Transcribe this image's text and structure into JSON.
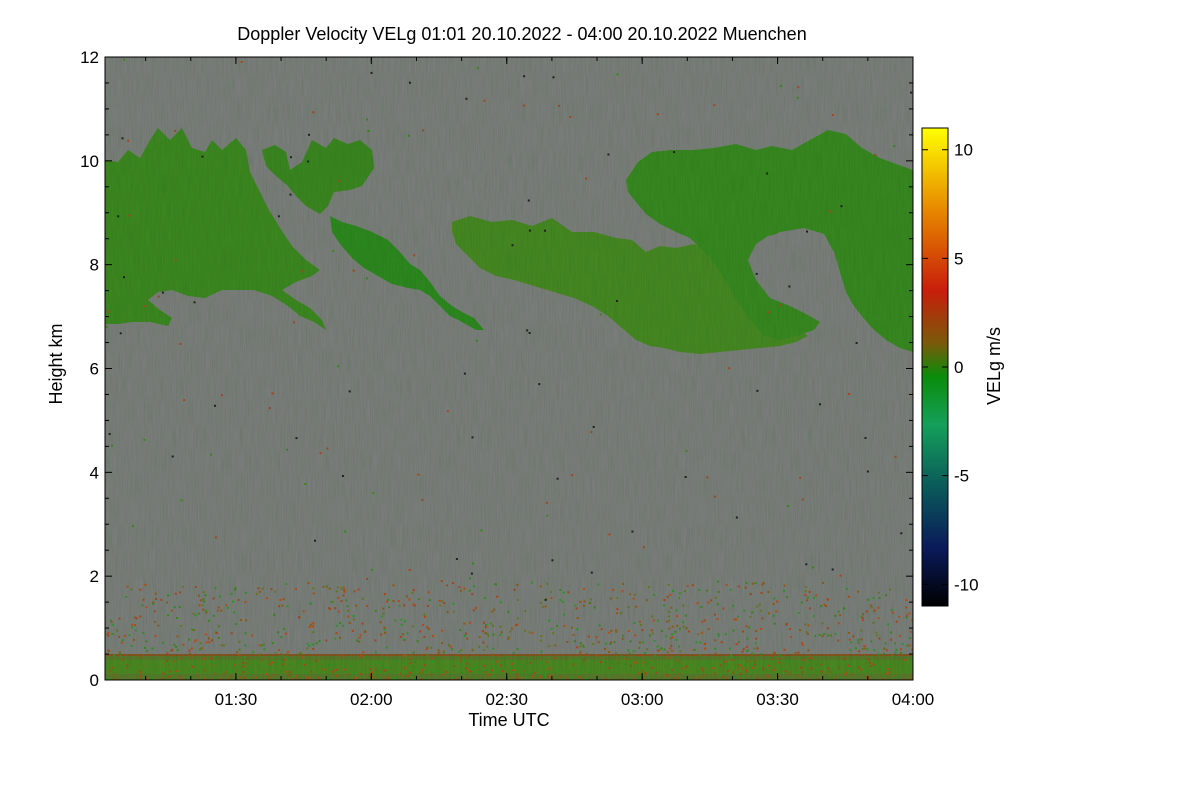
{
  "chart_data": {
    "type": "heatmap",
    "title": "Doppler Velocity VELg   01:01 20.10.2022 - 04:00 20.10.2022 Muenchen",
    "xlabel": "Time UTC",
    "ylabel": "Height km",
    "colorbar_label": "VELg m/s",
    "x_ticks": [
      "01:30",
      "02:00",
      "02:30",
      "03:00",
      "03:30",
      "04:00"
    ],
    "x_tick_minutes": [
      90,
      120,
      150,
      180,
      210,
      240
    ],
    "xlim_minutes": [
      61,
      240
    ],
    "y_ticks": [
      "0",
      "2",
      "4",
      "6",
      "8",
      "10",
      "12"
    ],
    "y_tick_values": [
      0,
      2,
      4,
      6,
      8,
      10,
      12
    ],
    "ylim": [
      0,
      12
    ],
    "colorbar_ticks": [
      "10",
      "5",
      "0",
      "-5",
      "-10"
    ],
    "colorbar_tick_values": [
      10,
      5,
      0,
      -5,
      -10
    ],
    "clim": [
      -11,
      11
    ],
    "colors": {
      "background_no_signal": "#808080",
      "colormap": [
        "#000000",
        "#0a1a5a",
        "#0a5a5a",
        "#14a05a",
        "#0a8c0a",
        "#7a5a0a",
        "#c81e0a",
        "#e68200",
        "#ffff00"
      ]
    },
    "cloud_regions": [
      {
        "description": "cloud layer",
        "time_start": 61,
        "time_end": 115,
        "height_bottom": 6.8,
        "height_top": 10.5,
        "mean_velocity": -1.2
      },
      {
        "description": "cloud layer",
        "time_start": 115,
        "time_end": 145,
        "height_bottom": 6.6,
        "height_top": 9.0,
        "mean_velocity": -1.5
      },
      {
        "description": "cloud layer",
        "time_start": 142,
        "time_end": 197,
        "height_bottom": 6.8,
        "height_top": 8.9,
        "mean_velocity": -0.8
      },
      {
        "description": "cloud layer",
        "time_start": 180,
        "time_end": 240,
        "height_bottom": 6.3,
        "height_top": 10.5,
        "mean_velocity": -1.3
      },
      {
        "description": "boundary layer echoes",
        "time_start": 61,
        "time_end": 240,
        "height_bottom": 0.0,
        "height_top": 1.8,
        "mean_velocity": 0.5
      }
    ]
  }
}
